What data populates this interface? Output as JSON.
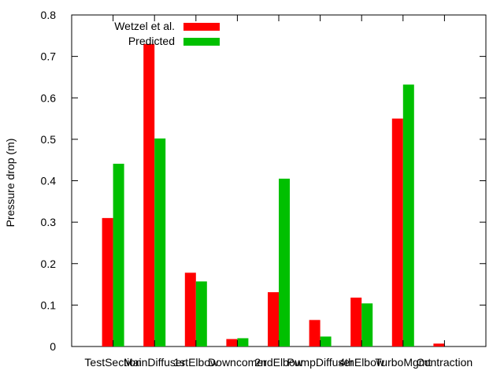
{
  "chart_data": {
    "type": "bar",
    "ylabel": "Pressure drop (m)",
    "ylim": [
      0,
      0.8
    ],
    "yticks": [
      "0",
      "0.1",
      "0.2",
      "0.3",
      "0.4",
      "0.5",
      "0.6",
      "0.7",
      "0.8"
    ],
    "categories": [
      "TestSection",
      "MainDiffuser",
      "1stElbow",
      "Downcomer",
      "2ndElbow",
      "PumpDiffuser",
      "4thElbow",
      "TurboMgmt",
      "Contraction"
    ],
    "series": [
      {
        "name": "Wetzel et al.",
        "color": "#ff0000",
        "values": [
          0.31,
          0.73,
          0.178,
          0.018,
          0.131,
          0.064,
          0.118,
          0.55,
          0.007
        ]
      },
      {
        "name": "Predicted",
        "color": "#00c000",
        "values": [
          0.441,
          0.502,
          0.157,
          0.02,
          0.405,
          0.024,
          0.104,
          0.632,
          0.0
        ]
      }
    ],
    "legend_position": "top-left",
    "grid": false
  }
}
